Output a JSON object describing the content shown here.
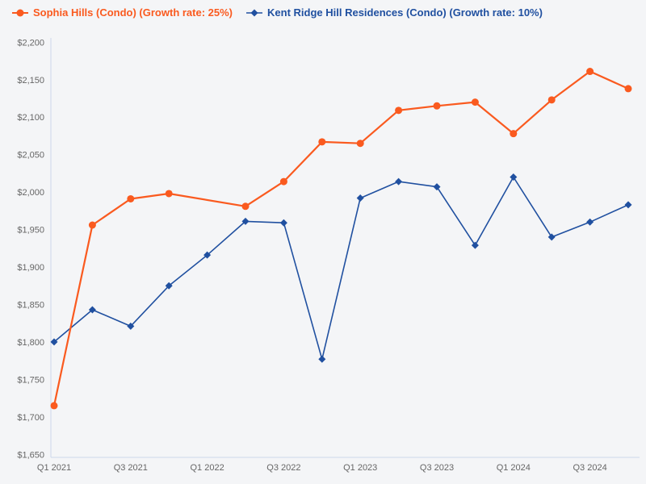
{
  "page": {
    "background_color": "#f4f5f7",
    "axis_line_color": "#ccd6eb",
    "tick_label_color": "#666666"
  },
  "chart_data": {
    "type": "line",
    "title": "",
    "xlabel": "",
    "ylabel": "",
    "ylim": [
      1650,
      2200
    ],
    "grid": false,
    "legend_position": "top-left",
    "categories": [
      "Q1 2021",
      "Q2 2021",
      "Q3 2021",
      "Q4 2021",
      "Q1 2022",
      "Q2 2022",
      "Q3 2022",
      "Q4 2022",
      "Q1 2023",
      "Q2 2023",
      "Q3 2023",
      "Q4 2023",
      "Q1 2024",
      "Q2 2024",
      "Q3 2024",
      "Q4 2024"
    ],
    "x_tick_labels": [
      "Q1 2021",
      "Q3 2021",
      "Q1 2022",
      "Q3 2022",
      "Q1 2023",
      "Q3 2023",
      "Q1 2024",
      "Q3 2024"
    ],
    "y_ticks": [
      {
        "value": 1650,
        "label": "$1,650"
      },
      {
        "value": 1700,
        "label": "$1,700"
      },
      {
        "value": 1750,
        "label": "$1,750"
      },
      {
        "value": 1800,
        "label": "$1,800"
      },
      {
        "value": 1850,
        "label": "$1,850"
      },
      {
        "value": 1900,
        "label": "$1,900"
      },
      {
        "value": 1950,
        "label": "$1,950"
      },
      {
        "value": 2000,
        "label": "$2,000"
      },
      {
        "value": 2050,
        "label": "$2,050"
      },
      {
        "value": 2100,
        "label": "$2,100"
      },
      {
        "value": 2150,
        "label": "$2,150"
      },
      {
        "value": 2200,
        "label": "$2,200"
      }
    ],
    "series": [
      {
        "name": "Sophia Hills (Condo) (Growth rate: 25%)",
        "color": "#fa5a1f",
        "marker": "circle",
        "values": [
          1715,
          1956,
          1991,
          1998,
          null,
          1981,
          2014,
          2067,
          2065,
          2109,
          2115,
          2120,
          2078,
          2123,
          2161,
          2138
        ]
      },
      {
        "name": "Kent Ridge Hill Residences (Condo) (Growth rate: 10%)",
        "color": "#2050a0",
        "marker": "diamond",
        "values": [
          1800,
          1843,
          1821,
          1875,
          1916,
          1961,
          1959,
          1777,
          1992,
          2014,
          2007,
          1929,
          2020,
          1940,
          1960,
          1983
        ]
      }
    ]
  }
}
